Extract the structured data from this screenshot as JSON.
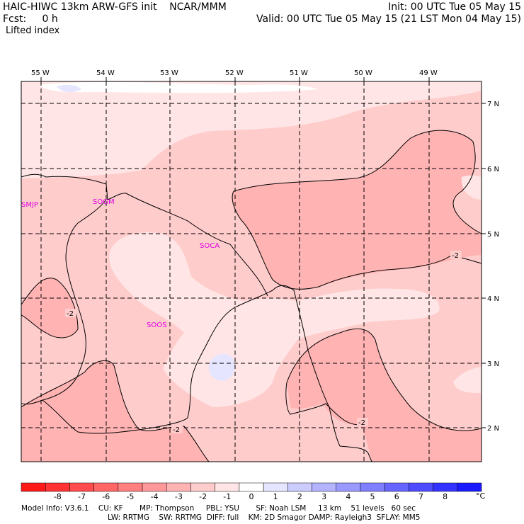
{
  "header": {
    "title_left": "HAIC-HIWC 13km ARW-GFS init    NCAR/MMM",
    "fcst": "Fcst:     0 h",
    "field_name": "Lifted index",
    "init": "Init: 00 UTC Tue 05 May 15",
    "valid": "Valid: 00 UTC Tue 05 May 15 (21 LST Mon 04 May 15)"
  },
  "map": {
    "lon_labels": [
      "55 W",
      "54 W",
      "53 W",
      "52 W",
      "51 W",
      "50 W",
      "49 W"
    ],
    "lat_labels": [
      "7 N",
      "6 N",
      "5 N",
      "4 N",
      "3 N",
      "2 N"
    ],
    "stations": [
      "SMJP",
      "SOGM",
      "SOCA",
      "SOOS"
    ],
    "contour_labels": [
      "-2",
      "-2",
      "-2",
      "-2"
    ]
  },
  "colorbar": {
    "colors": [
      "#ff1a1a",
      "#ff3333",
      "#ff4d4d",
      "#ff6666",
      "#ff8080",
      "#ff9999",
      "#ffb3b3",
      "#ffcccc",
      "#ffe5e5",
      "#ffffff",
      "#e5e5ff",
      "#ccccff",
      "#b3b3ff",
      "#9999ff",
      "#7f7fff",
      "#6666ff",
      "#4d4dff",
      "#3333ff",
      "#1a1aff"
    ],
    "labels": [
      "-8",
      "-7",
      "-6",
      "-5",
      "-4",
      "-3",
      "-2",
      "-1",
      "0",
      "1",
      "2",
      "3",
      "4",
      "5",
      "6",
      "7",
      "8"
    ],
    "unit": "°C"
  },
  "footer": {
    "line1": "Model Info: V3.6.1    CU: KF       MP: Thompson     PBL: YSU       SF: Noah LSM     13 km    51 levels   60 sec",
    "line2": "LW: RRTMG    SW: RRTMG  DIFF: full    KM: 2D Smagor DAMP: Rayleigh3  SFLAY: MM5"
  }
}
